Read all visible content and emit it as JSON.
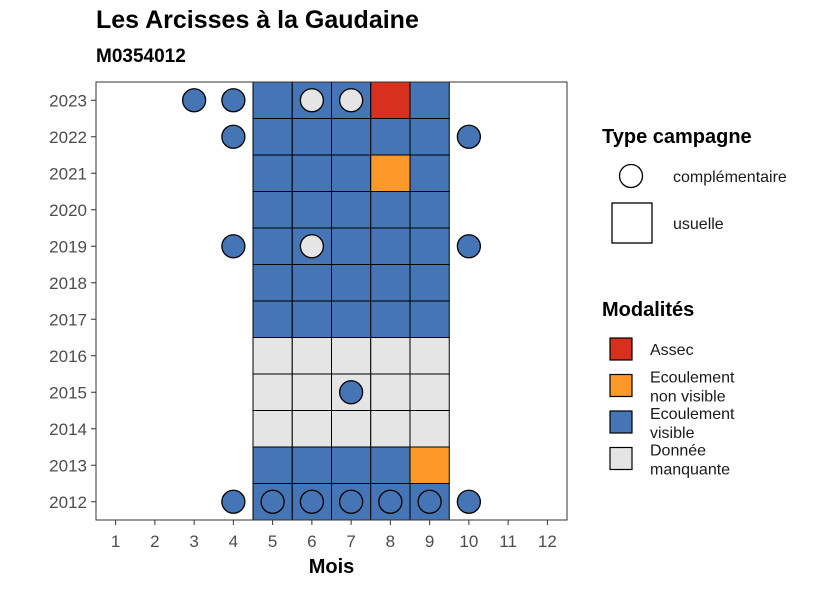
{
  "title": "Les Arcisses à la Gaudaine",
  "subtitle": "M0354012",
  "chart_data": {
    "type": "heatmap",
    "title": "Les Arcisses à la Gaudaine",
    "subtitle": "M0354012",
    "xlabel": "Mois",
    "ylabel": "",
    "x_ticks": [
      1,
      2,
      3,
      4,
      5,
      6,
      7,
      8,
      9,
      10,
      11,
      12
    ],
    "y_ticks": [
      2012,
      2013,
      2014,
      2015,
      2016,
      2017,
      2018,
      2019,
      2020,
      2021,
      2022,
      2023
    ],
    "xlim": [
      0.5,
      12.5
    ],
    "ylim": [
      2011.5,
      2023.5
    ],
    "colors": {
      "Assec": "#d7301f",
      "Ecoulement non visible": "#fe9929",
      "Ecoulement visible": "#4575b4",
      "Donnée manquante": "#e5e5e5"
    },
    "usuelle": [
      {
        "year": 2023,
        "months": [
          5,
          6,
          7,
          8,
          9
        ],
        "values": [
          "Ecoulement visible",
          "Ecoulement visible",
          "Ecoulement visible",
          "Assec",
          "Ecoulement visible"
        ]
      },
      {
        "year": 2022,
        "months": [
          5,
          6,
          7,
          8,
          9
        ],
        "values": [
          "Ecoulement visible",
          "Ecoulement visible",
          "Ecoulement visible",
          "Ecoulement visible",
          "Ecoulement visible"
        ]
      },
      {
        "year": 2021,
        "months": [
          5,
          6,
          7,
          8,
          9
        ],
        "values": [
          "Ecoulement visible",
          "Ecoulement visible",
          "Ecoulement visible",
          "Ecoulement non visible",
          "Ecoulement visible"
        ]
      },
      {
        "year": 2020,
        "months": [
          5,
          6,
          7,
          8,
          9
        ],
        "values": [
          "Ecoulement visible",
          "Ecoulement visible",
          "Ecoulement visible",
          "Ecoulement visible",
          "Ecoulement visible"
        ]
      },
      {
        "year": 2019,
        "months": [
          5,
          6,
          7,
          8,
          9
        ],
        "values": [
          "Ecoulement visible",
          "Ecoulement visible",
          "Ecoulement visible",
          "Ecoulement visible",
          "Ecoulement visible"
        ]
      },
      {
        "year": 2018,
        "months": [
          5,
          6,
          7,
          8,
          9
        ],
        "values": [
          "Ecoulement visible",
          "Ecoulement visible",
          "Ecoulement visible",
          "Ecoulement visible",
          "Ecoulement visible"
        ]
      },
      {
        "year": 2017,
        "months": [
          5,
          6,
          7,
          8,
          9
        ],
        "values": [
          "Ecoulement visible",
          "Ecoulement visible",
          "Ecoulement visible",
          "Ecoulement visible",
          "Ecoulement visible"
        ]
      },
      {
        "year": 2016,
        "months": [
          5,
          6,
          7,
          8,
          9
        ],
        "values": [
          "Donnée manquante",
          "Donnée manquante",
          "Donnée manquante",
          "Donnée manquante",
          "Donnée manquante"
        ]
      },
      {
        "year": 2015,
        "months": [
          5,
          6,
          7,
          8,
          9
        ],
        "values": [
          "Donnée manquante",
          "Donnée manquante",
          "Donnée manquante",
          "Donnée manquante",
          "Donnée manquante"
        ]
      },
      {
        "year": 2014,
        "months": [
          5,
          6,
          7,
          8,
          9
        ],
        "values": [
          "Donnée manquante",
          "Donnée manquante",
          "Donnée manquante",
          "Donnée manquante",
          "Donnée manquante"
        ]
      },
      {
        "year": 2013,
        "months": [
          5,
          6,
          7,
          8,
          9
        ],
        "values": [
          "Ecoulement visible",
          "Ecoulement visible",
          "Ecoulement visible",
          "Ecoulement visible",
          "Ecoulement non visible"
        ]
      },
      {
        "year": 2012,
        "months": [
          5,
          6,
          7,
          8,
          9
        ],
        "values": [
          "Ecoulement visible",
          "Ecoulement visible",
          "Ecoulement visible",
          "Ecoulement visible",
          "Ecoulement visible"
        ]
      }
    ],
    "complementaire": [
      {
        "year": 2023,
        "month": 3,
        "value": "Ecoulement visible"
      },
      {
        "year": 2023,
        "month": 4,
        "value": "Ecoulement visible"
      },
      {
        "year": 2023,
        "month": 6,
        "value": "Donnée manquante"
      },
      {
        "year": 2023,
        "month": 7,
        "value": "Donnée manquante"
      },
      {
        "year": 2022,
        "month": 4,
        "value": "Ecoulement visible"
      },
      {
        "year": 2022,
        "month": 10,
        "value": "Ecoulement visible"
      },
      {
        "year": 2019,
        "month": 4,
        "value": "Ecoulement visible"
      },
      {
        "year": 2019,
        "month": 6,
        "value": "Donnée manquante"
      },
      {
        "year": 2019,
        "month": 10,
        "value": "Ecoulement visible"
      },
      {
        "year": 2015,
        "month": 7,
        "value": "Ecoulement visible"
      },
      {
        "year": 2012,
        "month": 4,
        "value": "Ecoulement visible"
      },
      {
        "year": 2012,
        "month": 5,
        "value": "Ecoulement visible"
      },
      {
        "year": 2012,
        "month": 6,
        "value": "Ecoulement visible"
      },
      {
        "year": 2012,
        "month": 7,
        "value": "Ecoulement visible"
      },
      {
        "year": 2012,
        "month": 8,
        "value": "Ecoulement visible"
      },
      {
        "year": 2012,
        "month": 9,
        "value": "Ecoulement visible"
      },
      {
        "year": 2012,
        "month": 10,
        "value": "Ecoulement visible"
      }
    ],
    "legend_position": "right",
    "legend": {
      "type_title": "Type campagne",
      "type_items": [
        "complémentaire",
        "usuelle"
      ],
      "modalites_title": "Modalités",
      "modalites_items": [
        {
          "lines": [
            "Assec"
          ],
          "key": "Assec"
        },
        {
          "lines": [
            "Ecoulement",
            "non visible"
          ],
          "key": "Ecoulement non visible"
        },
        {
          "lines": [
            "Ecoulement",
            "visible"
          ],
          "key": "Ecoulement visible"
        },
        {
          "lines": [
            "Donnée",
            "manquante"
          ],
          "key": "Donnée manquante"
        }
      ]
    }
  }
}
